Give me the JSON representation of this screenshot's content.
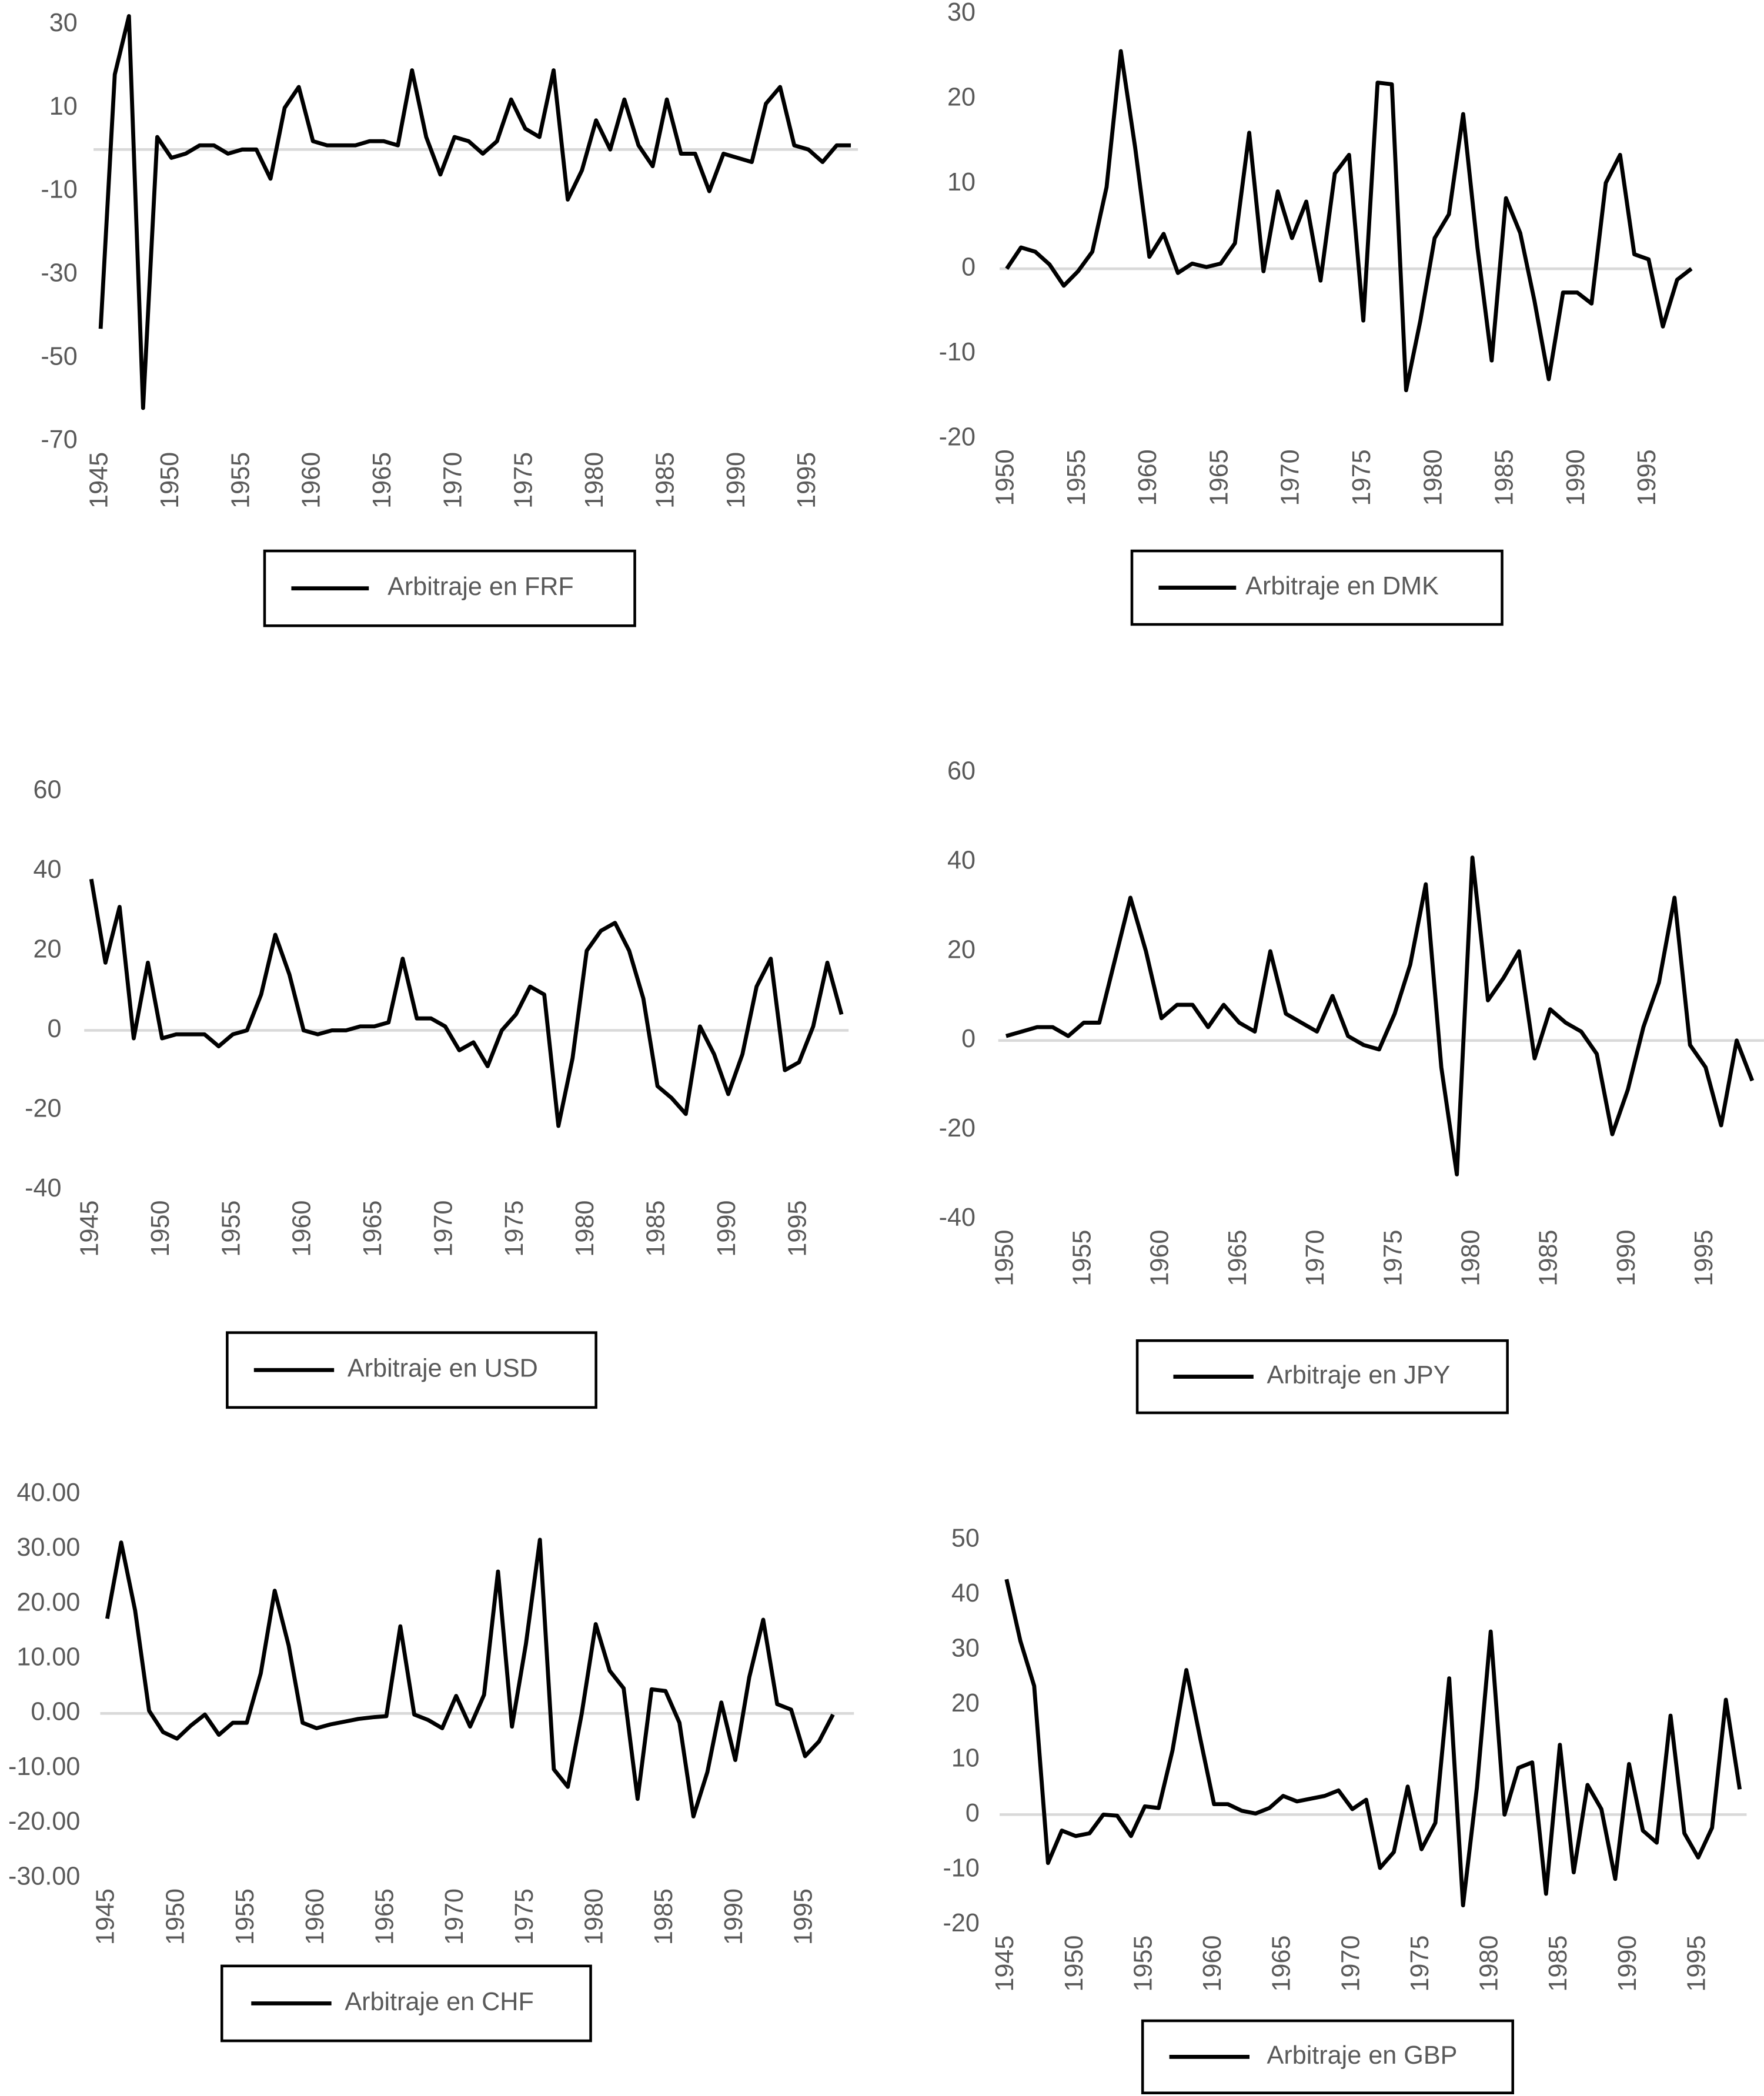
{
  "chart_data": [
    {
      "type": "line",
      "x": [
        1945,
        1946,
        1947,
        1948,
        1949,
        1950,
        1951,
        1952,
        1953,
        1954,
        1955,
        1956,
        1957,
        1958,
        1959,
        1960,
        1961,
        1962,
        1963,
        1964,
        1965,
        1966,
        1967,
        1968,
        1969,
        1970,
        1971,
        1972,
        1973,
        1974,
        1975,
        1976,
        1977,
        1978,
        1979,
        1980,
        1981,
        1982,
        1983,
        1984,
        1985,
        1986,
        1987,
        1988,
        1989,
        1990,
        1991,
        1992,
        1993,
        1994,
        1995,
        1996,
        1997,
        1998
      ],
      "series": [
        {
          "name": "Arbitraje en FRF",
          "color": "#000000",
          "values": [
            -43,
            18,
            32,
            -62,
            3,
            -2,
            -1,
            1,
            1,
            -1,
            0,
            0,
            -7,
            10,
            15,
            2,
            1,
            1,
            1,
            2,
            2,
            1,
            19,
            3,
            -6,
            3,
            2,
            -1,
            2,
            12,
            5,
            3,
            19,
            -12,
            -5,
            7,
            0,
            12,
            1,
            -4,
            12,
            -1,
            -1,
            -10,
            -1,
            -2,
            -3,
            11,
            15,
            1,
            0,
            -3,
            1,
            1
          ]
        }
      ],
      "xlim": [
        1944.5,
        1998.5
      ],
      "xticks": [
        1945,
        1950,
        1955,
        1960,
        1965,
        1970,
        1975,
        1980,
        1985,
        1990,
        1995
      ],
      "ylim": [
        -70,
        30
      ],
      "yticks": [
        30,
        10,
        -10,
        -30,
        -50,
        -70
      ]
    },
    {
      "type": "line",
      "x": [
        1950,
        1951,
        1952,
        1953,
        1954,
        1955,
        1956,
        1957,
        1958,
        1959,
        1960,
        1961,
        1962,
        1963,
        1964,
        1965,
        1966,
        1967,
        1968,
        1969,
        1970,
        1971,
        1972,
        1973,
        1974,
        1975,
        1976,
        1977,
        1978,
        1979,
        1980,
        1981,
        1982,
        1983,
        1984,
        1985,
        1986,
        1987,
        1988,
        1989,
        1990,
        1991,
        1992,
        1993,
        1994,
        1995,
        1996,
        1997,
        1998
      ],
      "series": [
        {
          "name": "Arbitraje en DMK",
          "color": "#000000",
          "values": [
            0,
            2.5,
            2,
            0.5,
            -2,
            -0.3,
            2,
            9.6,
            25.6,
            14.3,
            1.4,
            4.1,
            -0.5,
            0.6,
            0.2,
            0.6,
            3,
            16,
            -0.3,
            9.1,
            3.6,
            7.9,
            -1.4,
            11.2,
            13.4,
            -6.1,
            21.9,
            21.7,
            -14.3,
            -6.1,
            3.6,
            6.4,
            18.2,
            2.5,
            -10.8,
            8.3,
            4.2,
            -3.8,
            -13,
            -2.8,
            -2.8,
            -4.1,
            10.1,
            13.4,
            1.7,
            1.1,
            -6.8,
            -1.3,
            0
          ]
        }
      ],
      "xlim": [
        1949.5,
        1998.5
      ],
      "xticks": [
        1950,
        1955,
        1960,
        1965,
        1970,
        1975,
        1980,
        1985,
        1990,
        1995
      ],
      "ylim": [
        -20,
        30
      ],
      "yticks": [
        30,
        20,
        10,
        0,
        -10,
        -20
      ]
    },
    {
      "type": "line",
      "x": [
        1945,
        1946,
        1947,
        1948,
        1949,
        1950,
        1951,
        1952,
        1953,
        1954,
        1955,
        1956,
        1957,
        1958,
        1959,
        1960,
        1961,
        1962,
        1963,
        1964,
        1965,
        1966,
        1967,
        1968,
        1969,
        1970,
        1971,
        1972,
        1973,
        1974,
        1975,
        1976,
        1977,
        1978,
        1979,
        1980,
        1981,
        1982,
        1983,
        1984,
        1985,
        1986,
        1987,
        1988,
        1989,
        1990,
        1991,
        1992,
        1993,
        1994,
        1995,
        1996,
        1997,
        1998
      ],
      "series": [
        {
          "name": "Arbitraje en USD",
          "color": "#000000",
          "values": [
            38,
            17,
            31,
            -2,
            17,
            -2,
            -1,
            -1,
            -1,
            -4,
            -1,
            0,
            9,
            24,
            14,
            0,
            -1,
            0,
            0,
            1,
            1,
            2,
            18,
            3,
            3,
            1,
            -5,
            -3,
            -9,
            0,
            4,
            11,
            9,
            -24,
            -7,
            20,
            25,
            27,
            20,
            8,
            -14,
            -17,
            -21,
            1,
            -6,
            -16,
            -6,
            11,
            18,
            -10,
            -8,
            1,
            17,
            4
          ]
        }
      ],
      "xlim": [
        1944.5,
        1998.5
      ],
      "xticks": [
        1945,
        1950,
        1955,
        1960,
        1965,
        1970,
        1975,
        1980,
        1985,
        1990,
        1995
      ],
      "ylim": [
        -40,
        60
      ],
      "yticks": [
        60,
        40,
        20,
        0,
        -20,
        -40
      ]
    },
    {
      "type": "line",
      "x": [
        1950,
        1951,
        1952,
        1953,
        1954,
        1955,
        1956,
        1957,
        1958,
        1959,
        1960,
        1961,
        1962,
        1963,
        1964,
        1965,
        1966,
        1967,
        1968,
        1969,
        1970,
        1971,
        1972,
        1973,
        1974,
        1975,
        1976,
        1977,
        1978,
        1979,
        1980,
        1981,
        1982,
        1983,
        1984,
        1985,
        1986,
        1987,
        1988,
        1989,
        1990,
        1991,
        1992,
        1993,
        1994,
        1995,
        1996,
        1997,
        1998
      ],
      "series": [
        {
          "name": "Arbitraje en JPY",
          "color": "#000000",
          "values": [
            1,
            2,
            3,
            3,
            1,
            4,
            4,
            18,
            32,
            20,
            5,
            8,
            8,
            3,
            8,
            4,
            2,
            20,
            6,
            4,
            2,
            10,
            1,
            -1,
            -2,
            6,
            17,
            35,
            -6,
            -30,
            41,
            9,
            14,
            20,
            -4,
            7,
            4,
            2,
            -3,
            -21,
            -11,
            3,
            13,
            32,
            -1,
            -6,
            -19,
            0,
            -9
          ]
        }
      ],
      "xlim": [
        1949.5,
        1998.5
      ],
      "xticks": [
        1950,
        1955,
        1960,
        1965,
        1970,
        1975,
        1980,
        1985,
        1990,
        1995
      ],
      "ylim": [
        -40,
        60
      ],
      "yticks": [
        60,
        40,
        20,
        0,
        -20,
        -40
      ]
    },
    {
      "type": "line",
      "x": [
        1945,
        1946,
        1947,
        1948,
        1949,
        1950,
        1951,
        1952,
        1953,
        1954,
        1955,
        1956,
        1957,
        1958,
        1959,
        1960,
        1961,
        1962,
        1963,
        1964,
        1965,
        1966,
        1967,
        1968,
        1969,
        1970,
        1971,
        1972,
        1973,
        1974,
        1975,
        1976,
        1977,
        1978,
        1979,
        1980,
        1981,
        1982,
        1983,
        1984,
        1985,
        1986,
        1987,
        1988,
        1989,
        1990,
        1991,
        1992,
        1993,
        1994,
        1995,
        1996,
        1997
      ],
      "series": [
        {
          "name": "Arbitraje en CHF",
          "color": "#000000",
          "values": [
            17.3,
            31.2,
            18.8,
            0.5,
            -3.4,
            -4.6,
            -2.2,
            -0.2,
            -3.9,
            -1.7,
            -1.7,
            7.3,
            22.4,
            12.4,
            -1.7,
            -2.7,
            -2,
            -1.5,
            -1,
            -0.7,
            -0.5,
            15.9,
            -0.2,
            -1.2,
            -2.7,
            3.2,
            -2.4,
            3.4,
            25.9,
            -2.4,
            12.7,
            31.7,
            -10.2,
            -13.4,
            0,
            16.3,
            7.8,
            4.6,
            -15.6,
            4.4,
            4.1,
            -1.7,
            -18.8,
            -10.7,
            2,
            -8.5,
            6.6,
            17.1,
            1.7,
            0.7,
            -7.8,
            -5.1,
            -0.2
          ]
        }
      ],
      "xlim": [
        1944.5,
        1998.5
      ],
      "xticks": [
        1945,
        1950,
        1955,
        1960,
        1965,
        1970,
        1975,
        1980,
        1985,
        1990,
        1995
      ],
      "ylim": [
        -30,
        40
      ],
      "yticks": [
        {
          "value": 40,
          "label": "40.00"
        },
        {
          "value": 30,
          "label": "30.00"
        },
        {
          "value": 20,
          "label": "20.00"
        },
        {
          "value": 10,
          "label": "10.00"
        },
        {
          "value": 0,
          "label": "0.00"
        },
        {
          "value": -10,
          "label": "-10.00"
        },
        {
          "value": -20,
          "label": "-20.00"
        },
        {
          "value": -30,
          "label": "-30.00"
        }
      ]
    },
    {
      "type": "line",
      "x": [
        1945,
        1946,
        1947,
        1948,
        1949,
        1950,
        1951,
        1952,
        1953,
        1954,
        1955,
        1956,
        1957,
        1958,
        1959,
        1960,
        1961,
        1962,
        1963,
        1964,
        1965,
        1966,
        1967,
        1968,
        1969,
        1970,
        1971,
        1972,
        1973,
        1974,
        1975,
        1976,
        1977,
        1978,
        1979,
        1980,
        1981,
        1982,
        1983,
        1984,
        1985,
        1986,
        1987,
        1988,
        1989,
        1990,
        1991,
        1992,
        1993,
        1994,
        1995,
        1996,
        1997,
        1998
      ],
      "series": [
        {
          "name": "Arbitraje en GBP",
          "color": "#000000",
          "values": [
            42.8,
            31.6,
            23.4,
            -8.8,
            -2.9,
            -3.9,
            -3.4,
            0,
            -0.2,
            -3.9,
            1.5,
            1.2,
            11.7,
            26.3,
            13.9,
            1.9,
            1.9,
            0.7,
            0.2,
            1.2,
            3.4,
            2.4,
            2.9,
            3.4,
            4.4,
            1,
            2.7,
            -9.7,
            -6.8,
            5.1,
            -6.3,
            -1.5,
            24.8,
            -16.5,
            4.9,
            33.3,
            0,
            8.5,
            9.5,
            -14.4,
            12.7,
            -10.5,
            5.4,
            1,
            -11.7,
            9.2,
            -2.9,
            -5.1,
            18,
            -3.4,
            -7.8,
            -2.4,
            20.9,
            4.6
          ]
        }
      ],
      "xlim": [
        1944.5,
        1998.5
      ],
      "xticks": [
        1945,
        1950,
        1955,
        1960,
        1965,
        1970,
        1975,
        1980,
        1985,
        1990,
        1995
      ],
      "ylim": [
        -20,
        50
      ],
      "yticks": [
        50,
        40,
        30,
        20,
        10,
        0,
        -10,
        -20
      ]
    }
  ]
}
